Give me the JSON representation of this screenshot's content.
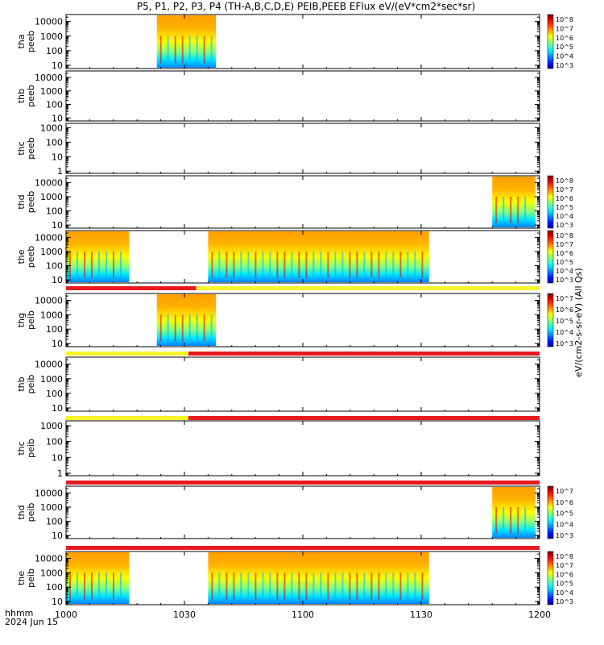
{
  "chart_data": {
    "type": "heatmap",
    "title": "P5, P1, P2, P3, P4 (TH-A,B,C,D,E) PEIB,PEEB EFlux eV/(eV*cm2*sec*sr)",
    "x_axis": {
      "range": [
        "10:00",
        "12:00"
      ],
      "tick_labels": [
        "1000",
        "1030",
        "1100",
        "1130",
        "1200"
      ],
      "footer_line1": "hhmm",
      "footer_line2": "2024 Jun 15"
    },
    "colorbar_label": "eV/(cm2-s-sr-eV) (All Qs)",
    "panels": [
      {
        "id": "thb_peeb_placeholder",
        "skip": true
      }
    ],
    "tplot": [
      {
        "label": "tha peeb",
        "yscale": "log",
        "ylim": [
          6,
          30000
        ],
        "yticks": [
          "10000",
          "1000",
          "100",
          "10"
        ],
        "cbar_ticks": [
          "10^8",
          "10^7",
          "10^6",
          "10^5",
          "10^4",
          "10^3"
        ],
        "data_intervals": [
          [
            "10:23",
            "10:38"
          ]
        ],
        "has_colorbar": true
      },
      {
        "label": "thb peeb",
        "yscale": "log",
        "ylim": [
          6,
          30000
        ],
        "yticks": [
          "10000",
          "1000",
          "100",
          "10"
        ],
        "data_intervals": [],
        "has_colorbar": false
      },
      {
        "label": "thc peeb",
        "yscale": "log",
        "ylim": [
          0.7,
          2000
        ],
        "yticks": [
          "1000",
          "100",
          "10",
          "1"
        ],
        "data_intervals": [],
        "has_colorbar": false
      },
      {
        "label": "thd peeb",
        "yscale": "log",
        "ylim": [
          6,
          30000
        ],
        "yticks": [
          "10000",
          "1000",
          "100",
          "10"
        ],
        "cbar_ticks": [
          "10^8",
          "10^7",
          "10^6",
          "10^5",
          "10^4",
          "10^3"
        ],
        "data_intervals": [
          [
            "11:48",
            "11:59"
          ]
        ],
        "has_colorbar": true
      },
      {
        "label": "the peeb",
        "yscale": "log",
        "ylim": [
          6,
          30000
        ],
        "yticks": [
          "10000",
          "1000",
          "100",
          "10"
        ],
        "cbar_ticks": [
          "10^8",
          "10^7",
          "10^6",
          "10^5",
          "10^4",
          "10^3"
        ],
        "data_intervals": [
          [
            "10:00",
            "10:16"
          ],
          [
            "10:36",
            "11:32"
          ]
        ],
        "has_colorbar": true
      },
      {
        "label": "thg peib",
        "yscale": "log",
        "ylim": [
          6,
          30000
        ],
        "yticks": [
          "10000",
          "1000",
          "100",
          "10"
        ],
        "cbar_ticks": [
          "10^7",
          "10^6",
          "10^5",
          "10^4",
          "10^3"
        ],
        "data_intervals": [
          [
            "10:23",
            "10:38"
          ]
        ],
        "has_colorbar": true
      },
      {
        "label": "thb peib",
        "yscale": "log",
        "ylim": [
          6,
          30000
        ],
        "yticks": [
          "10000",
          "1000",
          "100",
          "10"
        ],
        "data_intervals": [],
        "has_colorbar": false
      },
      {
        "label": "thc peib",
        "yscale": "log",
        "ylim": [
          0.7,
          2000
        ],
        "yticks": [
          "1000",
          "100",
          "10",
          "1"
        ],
        "data_intervals": [],
        "has_colorbar": false
      },
      {
        "label": "thd peib",
        "yscale": "log",
        "ylim": [
          6,
          30000
        ],
        "yticks": [
          "10000",
          "1000",
          "100",
          "10"
        ],
        "cbar_ticks": [
          "10^7",
          "10^6",
          "10^5",
          "10^4",
          "10^3"
        ],
        "data_intervals": [
          [
            "11:48",
            "11:59"
          ]
        ],
        "has_colorbar": true
      },
      {
        "label": "the peib",
        "yscale": "log",
        "ylim": [
          6,
          30000
        ],
        "yticks": [
          "10000",
          "1000",
          "100",
          "10"
        ],
        "cbar_ticks": [
          "10^8",
          "10^7",
          "10^6",
          "10^5",
          "10^4",
          "10^3"
        ],
        "data_intervals": [
          [
            "10:00",
            "10:16"
          ],
          [
            "10:36",
            "11:32"
          ]
        ],
        "has_colorbar": true
      }
    ],
    "mode_bars": [
      {
        "segments": [
          {
            "start": "10:00",
            "end": "10:33",
            "color": "#e8191f"
          },
          {
            "start": "10:33",
            "end": "12:00",
            "color": "#f5f52a"
          }
        ]
      },
      {
        "segments": [
          {
            "start": "10:00",
            "end": "10:31",
            "color": "#f5f52a"
          },
          {
            "start": "10:31",
            "end": "12:00",
            "color": "#e8191f"
          }
        ]
      },
      {
        "segments": [
          {
            "start": "10:00",
            "end": "10:31",
            "color": "#f5f52a"
          },
          {
            "start": "10:31",
            "end": "12:00",
            "color": "#e8191f"
          }
        ]
      },
      {
        "segments": [
          {
            "start": "10:00",
            "end": "12:00",
            "color": "#e8191f"
          }
        ]
      },
      {
        "segments": [
          {
            "start": "10:00",
            "end": "12:00",
            "color": "#e8191f"
          }
        ]
      }
    ]
  }
}
